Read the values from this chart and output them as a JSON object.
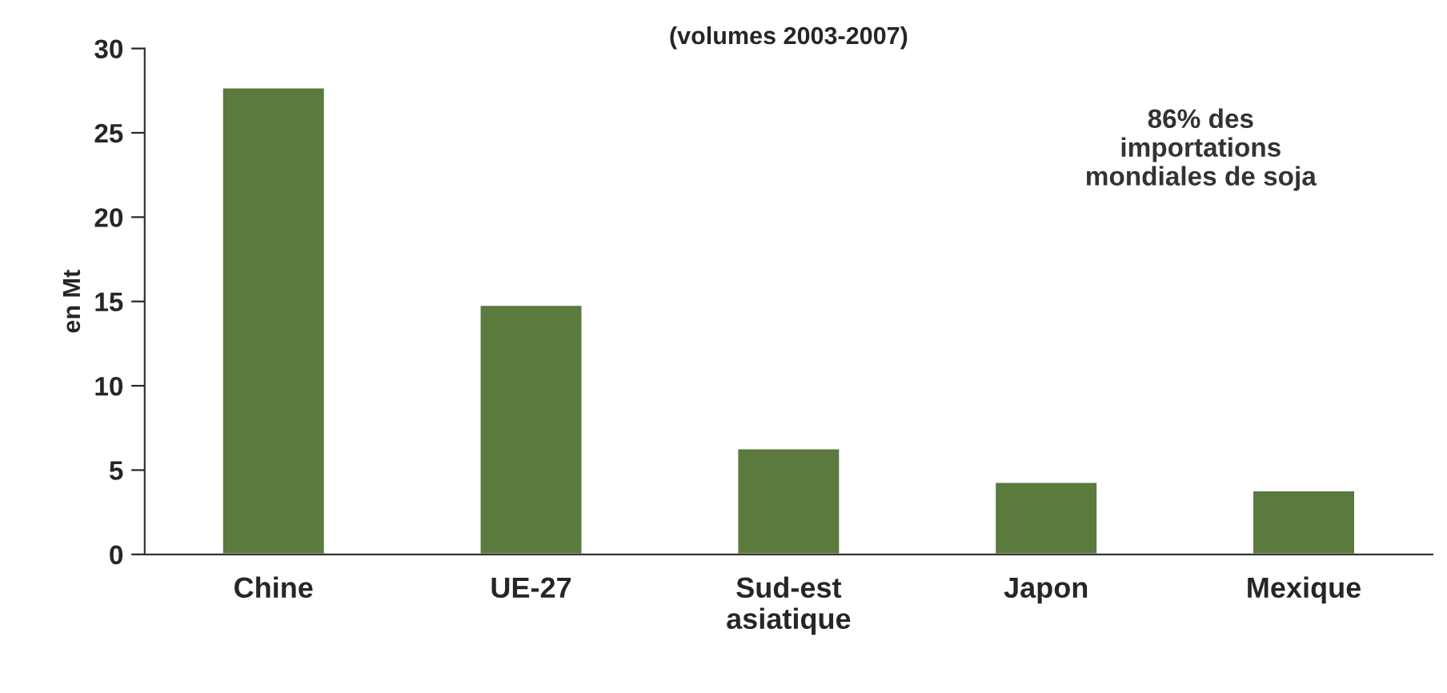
{
  "chart_data": {
    "type": "bar",
    "title": "(volumes 2003-2007)",
    "ylabel": "en Mt",
    "categories": [
      "Chine",
      "UE-27",
      "Sud-est\nasiatique",
      "Japon",
      "Mexique"
    ],
    "values": [
      27.7,
      14.8,
      6.3,
      4.3,
      3.8
    ],
    "color": "#5a7a3e",
    "ylim": [
      0,
      30
    ],
    "yticks": [
      0,
      5,
      10,
      15,
      20,
      25,
      30
    ],
    "grid": false,
    "legend": false,
    "annotations": [
      "86% des\nimportations\nmondiales de soja"
    ]
  }
}
